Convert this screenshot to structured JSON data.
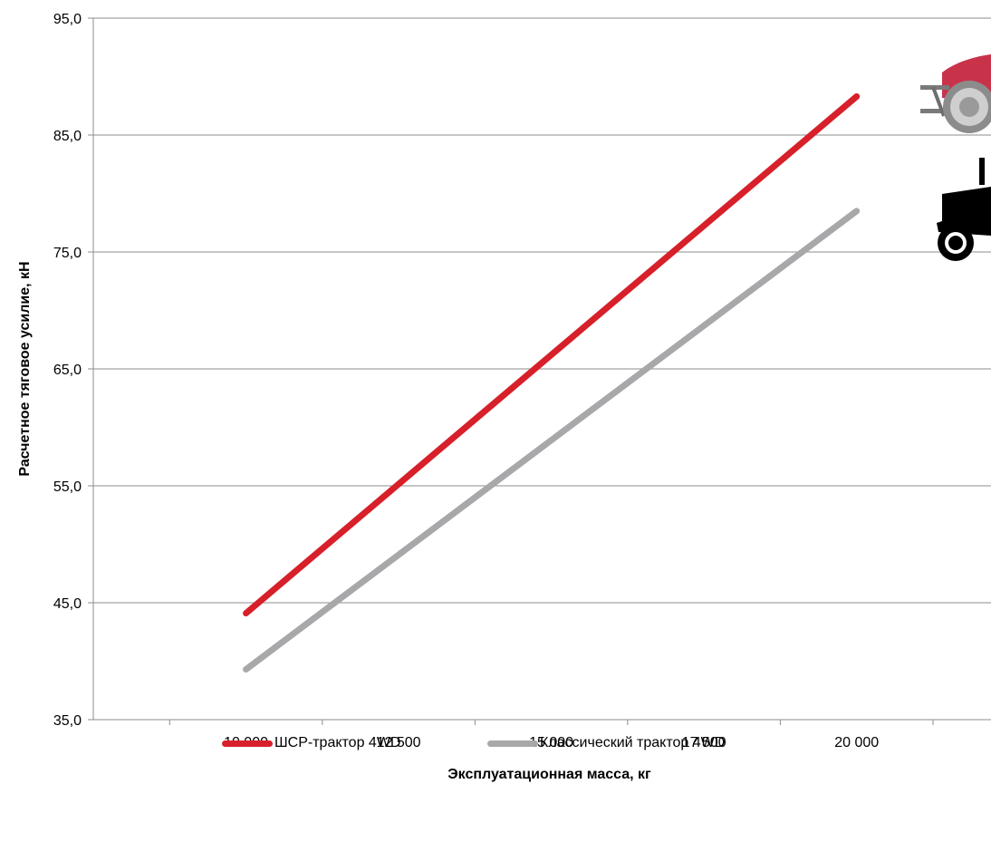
{
  "chart_data": {
    "type": "line",
    "title": "",
    "xlabel": "Эксплуатационная масса, кг",
    "ylabel": "Расчетное тяговое усилие, кН",
    "xlim": [
      7500,
      22200
    ],
    "ylim": [
      35,
      95
    ],
    "x_ticks": [
      10000,
      12500,
      15000,
      17500,
      20000
    ],
    "x_tick_labels": [
      "10 000",
      "12 500",
      "15 000",
      "17 500",
      "20 000"
    ],
    "y_ticks": [
      35,
      45,
      55,
      65,
      75,
      85,
      95
    ],
    "y_tick_labels": [
      "35,0",
      "45,0",
      "55,0",
      "65,0",
      "75,0",
      "85,0",
      "95,0"
    ],
    "grid": "horizontal",
    "legend_position": "bottom-center",
    "series": [
      {
        "name": "ШСР-трактор 4WD",
        "color": "#d7202a",
        "x": [
          10000,
          20000
        ],
        "values": [
          44.1,
          88.3
        ]
      },
      {
        "name": "Классический трактор 4WD",
        "color": "#a8a8ab",
        "x": [
          10000,
          20000
        ],
        "values": [
          39.3,
          78.5
        ]
      }
    ],
    "images": [
      {
        "icon": "red-tractor-icon",
        "series": "ШСР-трактор 4WD"
      },
      {
        "icon": "black-tractor-silhouette-icon",
        "series": "Классический трактор 4WD"
      }
    ]
  }
}
